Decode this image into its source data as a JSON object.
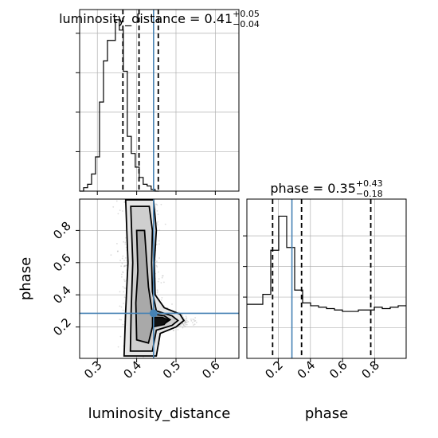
{
  "chart_data": {
    "type": "corner",
    "colors": {
      "truth": "#4682b4",
      "hist": "#000000",
      "grid": "#b0b0b0",
      "points": "#9a9a9a"
    },
    "parameters": [
      {
        "name": "luminosity_distance",
        "title_value": "0.41",
        "title_plus": "+0.05",
        "title_minus": "−0.04",
        "xlim": [
          0.255,
          0.66
        ],
        "xticks": [
          "0.3",
          "0.4",
          "0.5",
          "0.6"
        ],
        "quantiles": [
          0.365,
          0.406,
          0.455
        ],
        "truth": 0.443,
        "hist": {
          "edges_start": 0.255,
          "bin_width": 0.0101,
          "counts": [
            0,
            2,
            4,
            10,
            20,
            52,
            76,
            88,
            88,
            100,
            94,
            70,
            32,
            22,
            14,
            8,
            4,
            3,
            1,
            0
          ]
        }
      },
      {
        "name": "phase",
        "title_value": "0.35",
        "title_plus": "+0.43",
        "title_minus": "−0.18",
        "xlim": [
          0.005,
          0.995
        ],
        "xticks": [
          "0.2",
          "0.4",
          "0.6",
          "0.8"
        ],
        "yticks": [
          "0.2",
          "0.4",
          "0.6",
          "0.8"
        ],
        "quantiles": [
          0.165,
          0.345,
          0.775
        ],
        "truth": 0.285,
        "hist": {
          "edges_start": 0.005,
          "bin_width": 0.0495,
          "counts": [
            38,
            38,
            45,
            76,
            100,
            78,
            48,
            39,
            37,
            36,
            35,
            34,
            33,
            33,
            34,
            34,
            36,
            35,
            36,
            37
          ]
        }
      }
    ],
    "joint": {
      "xlabel": "luminosity_distance",
      "ylabel": "phase",
      "truth": [
        0.443,
        0.285
      ],
      "blobs": [
        {
          "x": 0.41,
          "y": 0.6,
          "sx": 0.02,
          "sy": 0.3,
          "n": 1600
        },
        {
          "x": 0.455,
          "y": 0.26,
          "sx": 0.022,
          "sy": 0.03,
          "n": 900
        },
        {
          "x": 0.475,
          "y": 0.24,
          "sx": 0.03,
          "sy": 0.02,
          "n": 500
        }
      ]
    }
  }
}
